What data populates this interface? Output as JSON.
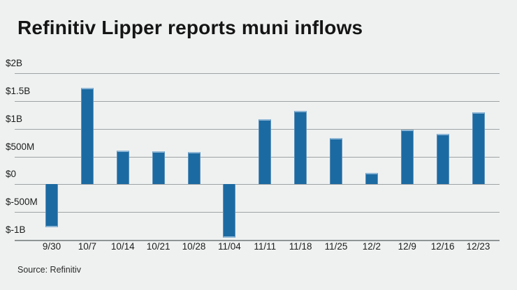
{
  "header": {
    "title": "Refinitiv Lipper reports muni inflows"
  },
  "footer": {
    "source": "Source: Refinitiv"
  },
  "colors": {
    "background": "#eff1f1",
    "bar": "#1c6aa2",
    "bar_cap": "#8fb7d6",
    "gridline": "#9ea3a3",
    "axis_line": "#8f9595",
    "text": "#151515"
  },
  "chart_data": {
    "type": "bar",
    "title": "Refinitiv Lipper reports muni inflows",
    "xlabel": "",
    "ylabel": "",
    "unit": "USD millions",
    "categories": [
      "9/30",
      "10/7",
      "10/14",
      "10/21",
      "10/28",
      "11/04",
      "11/11",
      "11/18",
      "11/25",
      "12/2",
      "12/9",
      "12/16",
      "12/23"
    ],
    "values_millions": [
      -780,
      1740,
      610,
      600,
      580,
      -960,
      1170,
      1330,
      830,
      200,
      990,
      910,
      1300
    ],
    "y_ticks": [
      {
        "label": "$2B",
        "value": 2000
      },
      {
        "label": "$1.5B",
        "value": 1500
      },
      {
        "label": "$1B",
        "value": 1000
      },
      {
        "label": "$500M",
        "value": 500
      },
      {
        "label": "$0",
        "value": 0
      },
      {
        "label": "$-500M",
        "value": -500
      },
      {
        "label": "$-1B",
        "value": -1000
      }
    ],
    "ylim": [
      -1000,
      2000
    ],
    "grid": true,
    "legend": "none",
    "source": "Source: Refinitiv"
  }
}
